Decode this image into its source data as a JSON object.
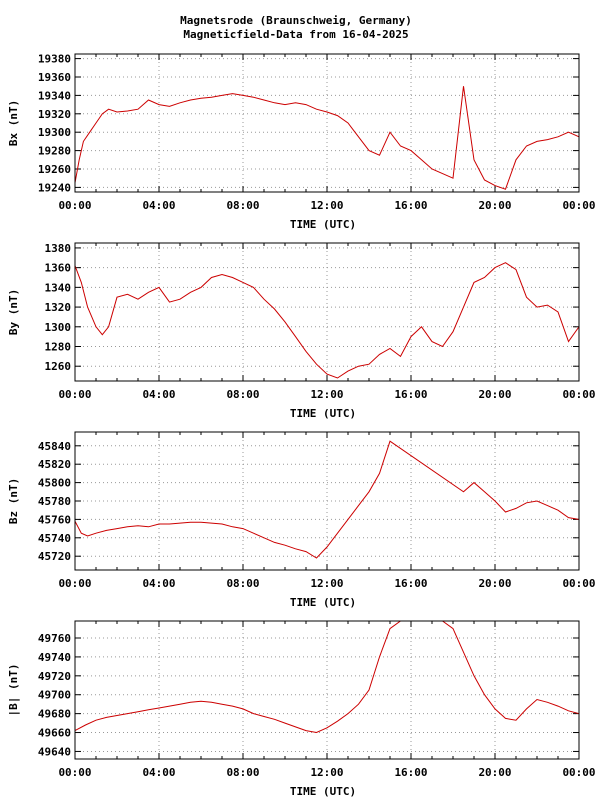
{
  "title_line1": "Magnetsrode (Braunschweig, Germany)",
  "title_line2": "Magneticfield-Data from 16-04-2025",
  "colors": {
    "trace": "#cc0000",
    "grid": "#999999",
    "frame": "#000000"
  },
  "chart_data": [
    {
      "type": "line",
      "ylabel": "Bx (nT)",
      "xlabel": "TIME (UTC)",
      "xlim": [
        0,
        24
      ],
      "ylim": [
        19235,
        19385
      ],
      "yticks": [
        19240,
        19260,
        19280,
        19300,
        19320,
        19340,
        19360,
        19380
      ],
      "xtick_labels": [
        "00:00",
        "04:00",
        "08:00",
        "12:00",
        "16:00",
        "20:00",
        "00:00"
      ],
      "grid": true,
      "series": [
        {
          "x": [
            0.0,
            0.2,
            0.4,
            0.7,
            1.0,
            1.3,
            1.6,
            2.0,
            2.5,
            3.0,
            3.5,
            4.0,
            4.5,
            5.0,
            5.5,
            6.0,
            6.5,
            7.0,
            7.5,
            8.0,
            8.5,
            9.0,
            9.5,
            10.0,
            10.5,
            11.0,
            11.5,
            12.0,
            12.5,
            13.0,
            13.5,
            14.0,
            14.5,
            15.0,
            15.5,
            16.0,
            16.5,
            17.0,
            17.5,
            18.0,
            18.5,
            19.0,
            19.5,
            20.0,
            20.5,
            21.0,
            21.5,
            22.0,
            22.5,
            23.0,
            23.5,
            24.0
          ],
          "y": [
            19245,
            19270,
            19290,
            19300,
            19310,
            19320,
            19325,
            19322,
            19323,
            19325,
            19335,
            19330,
            19328,
            19332,
            19335,
            19337,
            19338,
            19340,
            19342,
            19340,
            19338,
            19335,
            19332,
            19330,
            19332,
            19330,
            19325,
            19322,
            19318,
            19310,
            19295,
            19280,
            19275,
            19300,
            19285,
            19280,
            19270,
            19260,
            19255,
            19250,
            19350,
            19270,
            19248,
            19242,
            19238,
            19270,
            19285,
            19290,
            19292,
            19295,
            19300,
            19295
          ]
        }
      ]
    },
    {
      "type": "line",
      "ylabel": "By (nT)",
      "xlabel": "TIME (UTC)",
      "xlim": [
        0,
        24
      ],
      "ylim": [
        1245,
        1385
      ],
      "yticks": [
        1260,
        1280,
        1300,
        1320,
        1340,
        1360,
        1380
      ],
      "xtick_labels": [
        "00:00",
        "04:00",
        "08:00",
        "12:00",
        "16:00",
        "20:00",
        "00:00"
      ],
      "grid": true,
      "series": [
        {
          "x": [
            0.0,
            0.3,
            0.6,
            1.0,
            1.3,
            1.6,
            2.0,
            2.5,
            3.0,
            3.5,
            4.0,
            4.5,
            5.0,
            5.5,
            6.0,
            6.5,
            7.0,
            7.5,
            8.0,
            8.5,
            9.0,
            9.5,
            10.0,
            10.5,
            11.0,
            11.5,
            12.0,
            12.5,
            13.0,
            13.5,
            14.0,
            14.5,
            15.0,
            15.5,
            16.0,
            16.5,
            17.0,
            17.5,
            18.0,
            18.5,
            19.0,
            19.5,
            20.0,
            20.5,
            21.0,
            21.5,
            22.0,
            22.5,
            23.0,
            23.5,
            24.0
          ],
          "y": [
            1362,
            1345,
            1320,
            1300,
            1292,
            1300,
            1330,
            1333,
            1328,
            1335,
            1340,
            1325,
            1328,
            1335,
            1340,
            1350,
            1353,
            1350,
            1345,
            1340,
            1328,
            1318,
            1305,
            1290,
            1275,
            1262,
            1252,
            1248,
            1255,
            1260,
            1262,
            1272,
            1278,
            1270,
            1290,
            1300,
            1285,
            1280,
            1295,
            1320,
            1345,
            1350,
            1360,
            1365,
            1358,
            1330,
            1320,
            1322,
            1315,
            1285,
            1300
          ]
        }
      ]
    },
    {
      "type": "line",
      "ylabel": "Bz (nT)",
      "xlabel": "TIME (UTC)",
      "xlim": [
        0,
        24
      ],
      "ylim": [
        45705,
        45855
      ],
      "yticks": [
        45720,
        45740,
        45760,
        45780,
        45800,
        45820,
        45840
      ],
      "xtick_labels": [
        "00:00",
        "04:00",
        "08:00",
        "12:00",
        "16:00",
        "20:00",
        "00:00"
      ],
      "grid": true,
      "series": [
        {
          "x": [
            0.0,
            0.3,
            0.6,
            1.0,
            1.5,
            2.0,
            2.5,
            3.0,
            3.5,
            4.0,
            4.5,
            5.0,
            5.5,
            6.0,
            6.5,
            7.0,
            7.5,
            8.0,
            8.5,
            9.0,
            9.5,
            10.0,
            10.5,
            11.0,
            11.5,
            12.0,
            12.5,
            13.0,
            13.5,
            14.0,
            14.5,
            15.0,
            18.5,
            19.0,
            19.5,
            20.0,
            20.5,
            21.0,
            21.5,
            22.0,
            22.5,
            23.0,
            23.5,
            24.0
          ],
          "y": [
            45758,
            45745,
            45742,
            45745,
            45748,
            45750,
            45752,
            45753,
            45752,
            45755,
            45755,
            45756,
            45757,
            45757,
            45756,
            45755,
            45752,
            45750,
            45745,
            45740,
            45735,
            45732,
            45728,
            45725,
            45718,
            45730,
            45745,
            45760,
            45775,
            45790,
            45810,
            45845,
            45790,
            45800,
            45790,
            45780,
            45768,
            45772,
            45778,
            45780,
            45775,
            45770,
            45762,
            45760
          ]
        }
      ]
    },
    {
      "type": "line",
      "ylabel": "|B| (nT)",
      "xlabel": "TIME (UTC)",
      "xlim": [
        0,
        24
      ],
      "ylim": [
        49632,
        49778
      ],
      "yticks": [
        49640,
        49660,
        49680,
        49700,
        49720,
        49740,
        49760
      ],
      "xtick_labels": [
        "00:00",
        "04:00",
        "08:00",
        "12:00",
        "16:00",
        "20:00",
        "00:00"
      ],
      "grid": true,
      "series": [
        {
          "x": [
            0.0,
            0.5,
            1.0,
            1.5,
            2.0,
            2.5,
            3.0,
            3.5,
            4.0,
            4.5,
            5.0,
            5.5,
            6.0,
            6.5,
            7.0,
            7.5,
            8.0,
            8.5,
            9.0,
            9.5,
            10.0,
            10.5,
            11.0,
            11.5,
            12.0,
            12.5,
            13.0,
            13.5,
            14.0,
            14.5,
            15.0,
            15.5,
            16.0,
            16.5,
            17.0,
            17.5,
            18.0,
            18.5,
            19.0,
            19.5,
            20.0,
            20.5,
            21.0,
            21.5,
            22.0,
            22.5,
            23.0,
            23.5,
            24.0
          ],
          "y": [
            49662,
            49668,
            49673,
            49676,
            49678,
            49680,
            49682,
            49684,
            49686,
            49688,
            49690,
            49692,
            49693,
            49692,
            49690,
            49688,
            49685,
            49680,
            49677,
            49674,
            49670,
            49666,
            49662,
            49660,
            49665,
            49672,
            49680,
            49690,
            49705,
            49740,
            49770,
            49778,
            49778,
            49778,
            49778,
            49778,
            49770,
            49745,
            49720,
            49700,
            49685,
            49675,
            49673,
            49685,
            49695,
            49692,
            49688,
            49683,
            49680
          ]
        }
      ]
    }
  ]
}
